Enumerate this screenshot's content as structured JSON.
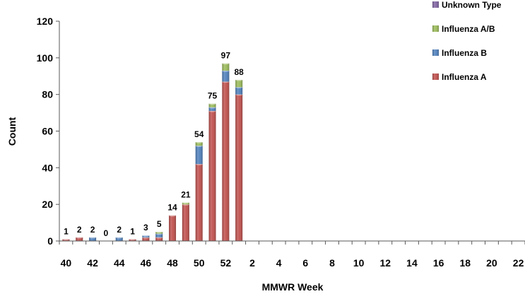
{
  "chart_data": {
    "type": "bar",
    "stacked": true,
    "xlabel": "MMWR Week",
    "ylabel": "Count",
    "ylim": [
      0,
      120
    ],
    "yticks": [
      0,
      20,
      40,
      60,
      80,
      100,
      120
    ],
    "grid": false,
    "legend_position": "right",
    "categories": [
      "40",
      "41",
      "42",
      "43",
      "44",
      "45",
      "46",
      "47",
      "48",
      "49",
      "50",
      "51",
      "52",
      "1",
      "2",
      "3",
      "4",
      "5",
      "6",
      "7",
      "8",
      "9",
      "10",
      "11",
      "12",
      "13",
      "14",
      "15",
      "16",
      "17",
      "18",
      "19",
      "20",
      "21",
      "22"
    ],
    "tick_labels": [
      "40",
      "",
      "42",
      "",
      "44",
      "",
      "46",
      "",
      "48",
      "",
      "50",
      "",
      "52",
      "",
      "2",
      "",
      "4",
      "",
      "6",
      "",
      "8",
      "",
      "10",
      "",
      "12",
      "",
      "14",
      "",
      "16",
      "",
      "18",
      "",
      "20",
      "",
      "22"
    ],
    "totals": [
      1,
      2,
      2,
      0,
      2,
      1,
      3,
      5,
      14,
      21,
      54,
      75,
      97,
      88,
      null,
      null,
      null,
      null,
      null,
      null,
      null,
      null,
      null,
      null,
      null,
      null,
      null,
      null,
      null,
      null,
      null,
      null,
      null,
      null,
      null
    ],
    "total_labels": [
      "1",
      "2",
      "2",
      "0",
      "2",
      "1",
      "3",
      "5",
      "14",
      "21",
      "54",
      "75",
      "97",
      "88",
      "",
      "",
      "",
      "",
      "",
      "",
      "",
      "",
      "",
      "",
      "",
      "",
      "",
      "",
      "",
      "",
      "",
      "",
      "",
      "",
      ""
    ],
    "series": [
      {
        "name": "Influenza A",
        "color": "#c0504d",
        "values": [
          1,
          2,
          0,
          0,
          0,
          1,
          2,
          2,
          14,
          20,
          42,
          71,
          87,
          80,
          0,
          0,
          0,
          0,
          0,
          0,
          0,
          0,
          0,
          0,
          0,
          0,
          0,
          0,
          0,
          0,
          0,
          0,
          0,
          0,
          0
        ]
      },
      {
        "name": "Influenza B",
        "color": "#4f81bd",
        "values": [
          0,
          0,
          2,
          0,
          2,
          0,
          1,
          2,
          0,
          0,
          10,
          2,
          6,
          4,
          0,
          0,
          0,
          0,
          0,
          0,
          0,
          0,
          0,
          0,
          0,
          0,
          0,
          0,
          0,
          0,
          0,
          0,
          0,
          0,
          0
        ]
      },
      {
        "name": "Influenza A/B",
        "color": "#9bbb59",
        "values": [
          0,
          0,
          0,
          0,
          0,
          0,
          0,
          1,
          0,
          1,
          2,
          2,
          4,
          4,
          0,
          0,
          0,
          0,
          0,
          0,
          0,
          0,
          0,
          0,
          0,
          0,
          0,
          0,
          0,
          0,
          0,
          0,
          0,
          0,
          0
        ]
      },
      {
        "name": "Unknown Type",
        "color": "#8064a2",
        "values": [
          0,
          0,
          0,
          0,
          0,
          0,
          0,
          0,
          0,
          0,
          0,
          0,
          0,
          0,
          0,
          0,
          0,
          0,
          0,
          0,
          0,
          0,
          0,
          0,
          0,
          0,
          0,
          0,
          0,
          0,
          0,
          0,
          0,
          0,
          0
        ]
      }
    ],
    "legend_order": [
      "Unknown Type",
      "Influenza A/B",
      "Influenza B",
      "Influenza A"
    ]
  }
}
